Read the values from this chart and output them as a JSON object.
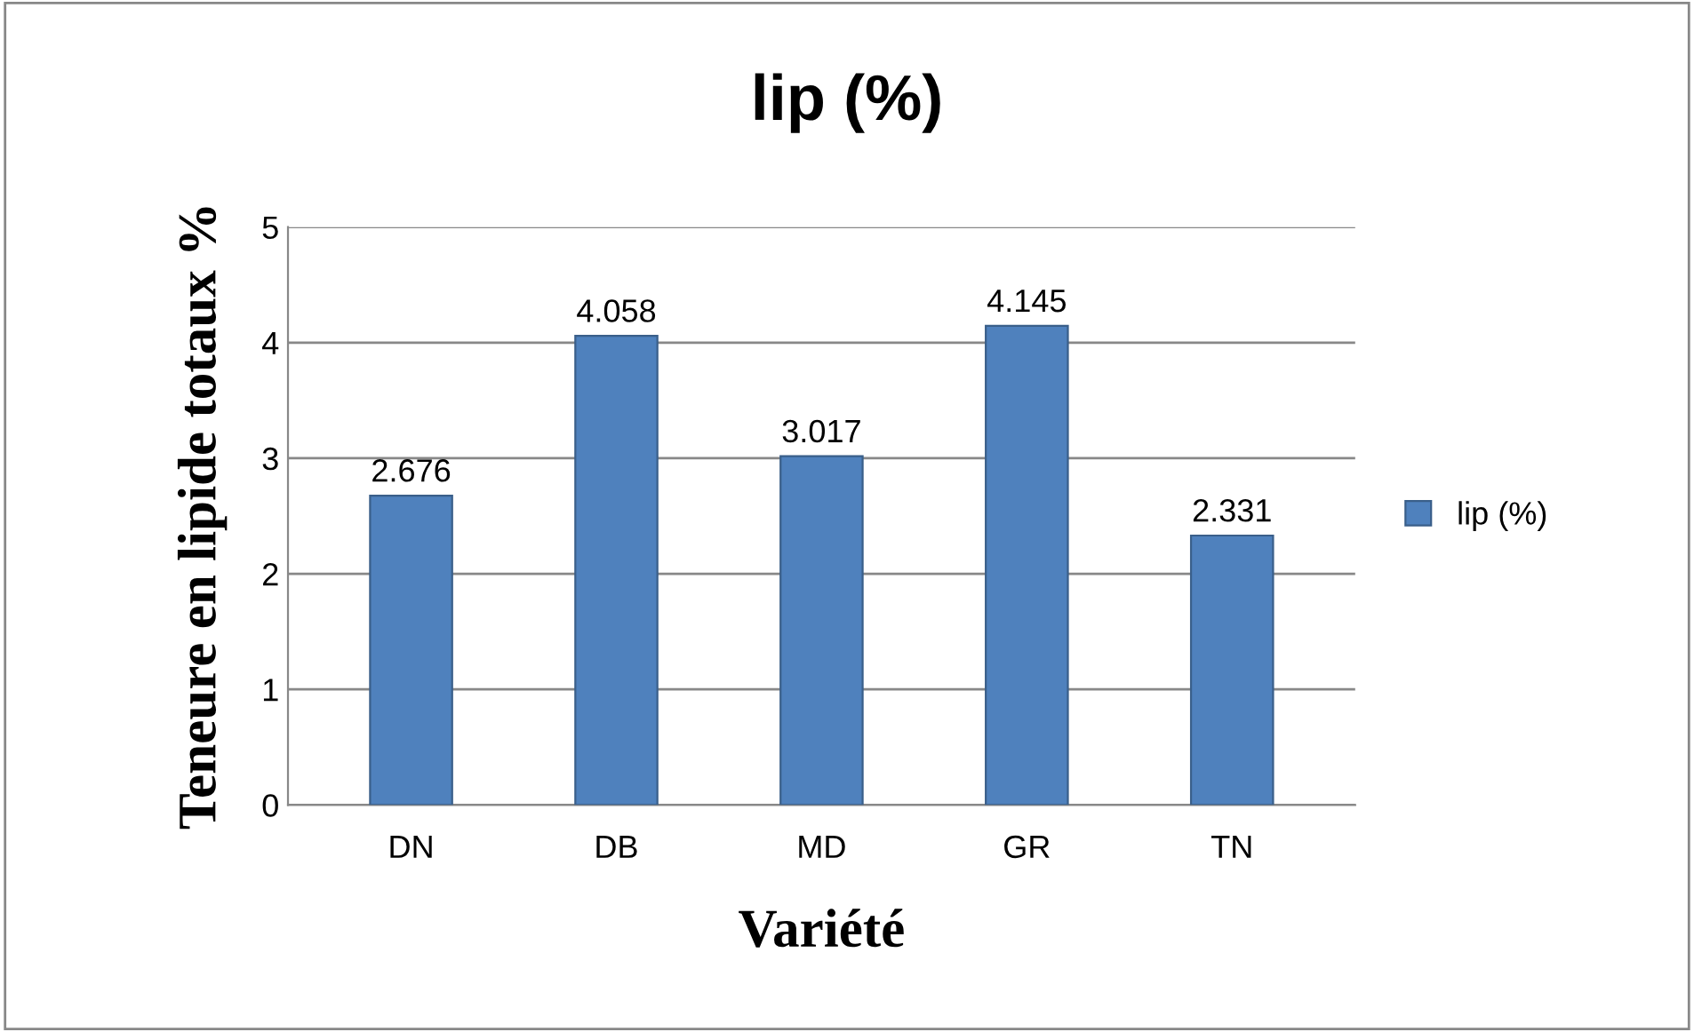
{
  "chart_data": {
    "type": "bar",
    "title": "lip (%)",
    "xlabel": "Variété",
    "ylabel": "Teneure en lipide totaux %",
    "categories": [
      "DN",
      "DB",
      "MD",
      "GR",
      "TN"
    ],
    "series": [
      {
        "name": "lip (%)",
        "color": "#4f81bd",
        "values": [
          2.676,
          4.058,
          3.017,
          4.145,
          2.331
        ]
      }
    ],
    "ylim": [
      0,
      5
    ],
    "yticks": [
      0,
      1,
      2,
      3,
      4,
      5
    ],
    "grid": "y",
    "legend": "right",
    "data_labels": true
  }
}
